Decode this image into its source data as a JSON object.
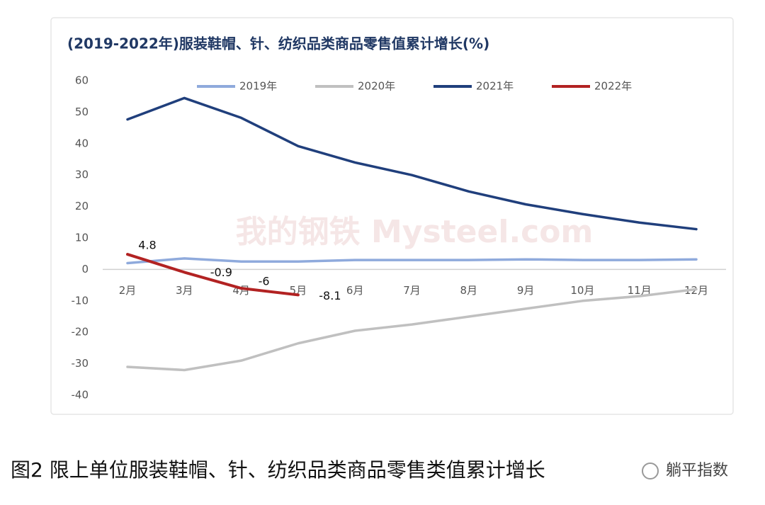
{
  "chart_data": {
    "type": "line",
    "title": "(2019-2022年)服装鞋帽、针、纺织品类商品零售值累计增长(%)",
    "categories": [
      "2月",
      "3月",
      "4月",
      "5月",
      "6月",
      "7月",
      "8月",
      "9月",
      "10月",
      "11月",
      "12月"
    ],
    "series": [
      {
        "name": "2019年",
        "color": "#8faadc",
        "values": [
          2,
          3.5,
          2.5,
          2.5,
          3,
          3,
          3,
          3.2,
          3,
          3,
          3.2
        ]
      },
      {
        "name": "2020年",
        "color": "#c0c0c0",
        "values": [
          -31,
          -32,
          -29,
          -23.5,
          -19.5,
          -17.5,
          -15,
          -12.5,
          -10,
          -8.5,
          -6.3
        ]
      },
      {
        "name": "2021年",
        "color": "#203f7c",
        "values": [
          47.7,
          54.5,
          48.2,
          39.2,
          34,
          30,
          24.8,
          20.7,
          17.6,
          14.9,
          12.8
        ]
      },
      {
        "name": "2022年",
        "color": "#b22222",
        "values": [
          4.8,
          -0.9,
          -6,
          -8.1,
          null,
          null,
          null,
          null,
          null,
          null,
          null
        ],
        "show_labels": true
      }
    ],
    "ylim": [
      -40,
      60
    ],
    "yticks": [
      -40,
      -30,
      -20,
      -10,
      0,
      10,
      20,
      30,
      40,
      50,
      60
    ],
    "legend": "top",
    "watermark": "我的钢铁 Mysteel.com",
    "caption": "图2 限上单位服装鞋帽、针、纺织品类商品零售类值累计增长",
    "logo": "躺平指数"
  }
}
